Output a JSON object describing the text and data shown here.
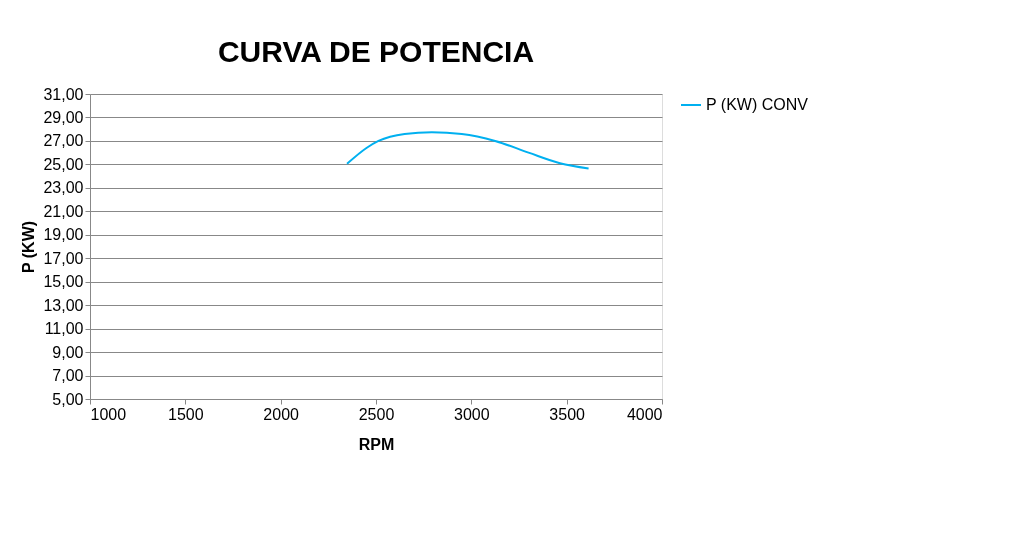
{
  "chart_data": {
    "type": "line",
    "title": "CURVA DE POTENCIA",
    "xlabel": "RPM",
    "ylabel": "P (KW)",
    "x": [
      2348,
      2450,
      2513,
      2650,
      2793,
      2950,
      3125,
      3300,
      3465,
      3615
    ],
    "series": [
      {
        "name": "P (KW) CONV",
        "color": "#00b0f0",
        "values": [
          25.05,
          26.4,
          27.0,
          27.6,
          27.75,
          27.6,
          27.0,
          26.0,
          25.1,
          24.65
        ]
      }
    ],
    "xlim": [
      1000,
      4000
    ],
    "xticks": [
      1000,
      1500,
      2000,
      2500,
      3000,
      3500,
      4000
    ],
    "ylim": [
      5,
      31
    ],
    "yticks": [
      {
        "value": 5,
        "label": "5,00"
      },
      {
        "value": 7,
        "label": "7,00"
      },
      {
        "value": 9,
        "label": "9,00"
      },
      {
        "value": 11,
        "label": "11,00"
      },
      {
        "value": 13,
        "label": "13,00"
      },
      {
        "value": 15,
        "label": "15,00"
      },
      {
        "value": 17,
        "label": "17,00"
      },
      {
        "value": 19,
        "label": "19,00"
      },
      {
        "value": 21,
        "label": "21,00"
      },
      {
        "value": 23,
        "label": "23,00"
      },
      {
        "value": 25,
        "label": "25,00"
      },
      {
        "value": 27,
        "label": "27,00"
      },
      {
        "value": 29,
        "label": "29,00"
      },
      {
        "value": 31,
        "label": "31,00"
      }
    ],
    "grid": "y",
    "legend": "right",
    "marker": "none",
    "line_style": "solid"
  }
}
